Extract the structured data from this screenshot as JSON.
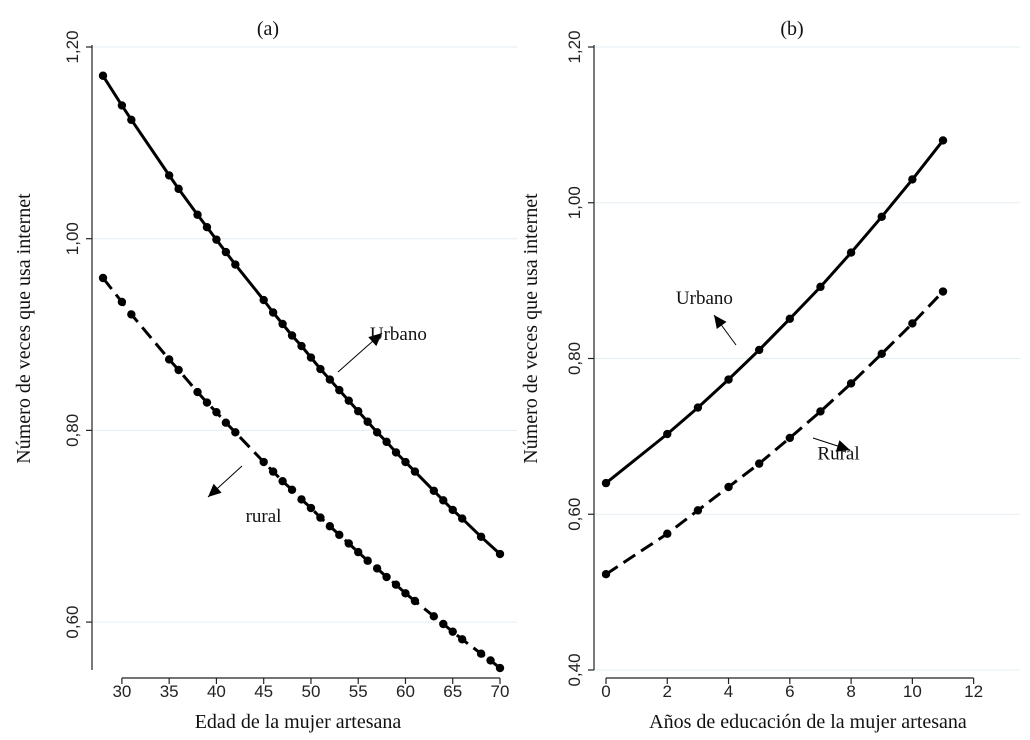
{
  "chart_data": [
    {
      "type": "line",
      "title": "(a)",
      "xlabel": "Edad de la mujer artesana",
      "ylabel": "Número de veces que usa internet",
      "xlim": [
        28,
        70
      ],
      "ylim": [
        0.55,
        1.2
      ],
      "xticks": [
        30,
        35,
        40,
        45,
        50,
        55,
        60,
        65,
        70
      ],
      "xtick_labels": [
        "30",
        "35",
        "40",
        "45",
        "50",
        "55",
        "60",
        "65",
        "70"
      ],
      "yticks": [
        0.6,
        0.8,
        1.0,
        1.2
      ],
      "ytick_labels": [
        "0,60",
        "0,80",
        "1,00",
        "1,20"
      ],
      "grid": true,
      "series": [
        {
          "name": "Urbano",
          "style": "solid",
          "x": [
            28,
            30,
            31,
            35,
            36,
            38,
            39,
            40,
            41,
            42,
            45,
            46,
            47,
            48,
            49,
            50,
            51,
            52,
            53,
            54,
            55,
            56,
            57,
            58,
            59,
            60,
            61,
            63,
            64,
            65,
            66,
            68,
            70
          ],
          "y": [
            1.17,
            1.139,
            1.124,
            1.066,
            1.052,
            1.025,
            1.012,
            0.999,
            0.986,
            0.973,
            0.936,
            0.923,
            0.911,
            0.899,
            0.888,
            0.876,
            0.864,
            0.853,
            0.842,
            0.831,
            0.82,
            0.809,
            0.798,
            0.788,
            0.777,
            0.767,
            0.757,
            0.737,
            0.727,
            0.717,
            0.708,
            0.689,
            0.671
          ]
        },
        {
          "name": "rural",
          "style": "dashed",
          "x": [
            28,
            30,
            31,
            35,
            36,
            38,
            39,
            40,
            41,
            42,
            45,
            46,
            47,
            48,
            49,
            50,
            51,
            52,
            53,
            54,
            55,
            56,
            57,
            58,
            59,
            60,
            61,
            63,
            64,
            65,
            66,
            68,
            69,
            70
          ],
          "y": [
            0.959,
            0.934,
            0.921,
            0.874,
            0.863,
            0.84,
            0.829,
            0.819,
            0.808,
            0.798,
            0.767,
            0.757,
            0.747,
            0.738,
            0.728,
            0.719,
            0.709,
            0.7,
            0.691,
            0.682,
            0.673,
            0.664,
            0.656,
            0.647,
            0.639,
            0.63,
            0.622,
            0.606,
            0.598,
            0.59,
            0.582,
            0.567,
            0.56,
            0.552
          ]
        }
      ],
      "annotations": [
        {
          "text": "Urbano",
          "x": 57.5,
          "y": 0.907
        },
        {
          "text": "rural",
          "x": 45.2,
          "y": 0.715
        }
      ]
    },
    {
      "type": "line",
      "title": "(b)",
      "xlabel": "Años de educación de la mujer artesana",
      "ylabel": "Número de veces que usa internet",
      "xlim": [
        0,
        11
      ],
      "ylim": [
        0.4,
        1.2
      ],
      "xticks": [
        0,
        2,
        4,
        6,
        8,
        10,
        12
      ],
      "xtick_labels": [
        "0",
        "2",
        "4",
        "6",
        "8",
        "10",
        "12"
      ],
      "yticks": [
        0.4,
        0.6,
        0.8,
        1.0,
        1.2
      ],
      "ytick_labels": [
        "0,40",
        "0,60",
        "0,80",
        "1,00",
        "1,20"
      ],
      "grid": true,
      "series": [
        {
          "name": "Urbano",
          "style": "solid",
          "x": [
            0,
            2,
            3,
            4,
            5,
            6,
            7,
            8,
            9,
            10,
            11
          ],
          "y": [
            0.64,
            0.703,
            0.737,
            0.773,
            0.811,
            0.851,
            0.892,
            0.936,
            0.982,
            1.03,
            1.08
          ]
        },
        {
          "name": "Rural",
          "style": "dashed",
          "x": [
            0,
            2,
            3,
            4,
            5,
            6,
            7,
            8,
            9,
            10,
            11
          ],
          "y": [
            0.523,
            0.575,
            0.605,
            0.635,
            0.665,
            0.698,
            0.732,
            0.768,
            0.806,
            0.845,
            0.886
          ]
        }
      ],
      "annotations": [
        {
          "text": "Urbano",
          "x": 3.0,
          "y": 0.87
        },
        {
          "text": "Rural",
          "x": 6.9,
          "y": 0.67
        }
      ]
    }
  ]
}
